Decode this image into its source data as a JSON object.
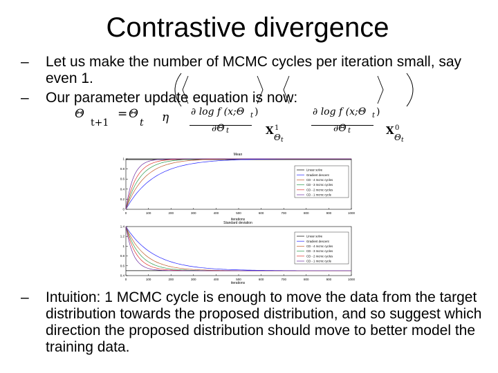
{
  "slide": {
    "title": "Contrastive divergence",
    "bullets": [
      {
        "dash": "–",
        "text": "Let us make the number of MCMC cycles per iteration small, say even 1."
      },
      {
        "dash": "–",
        "text": "Our parameter update equation is now:"
      },
      {
        "dash": "–",
        "text": "Intuition: 1 MCMC cycle is enough to move the data from the target distribution towards the proposed distribution, and so suggest which direction the proposed distribution should move to better model the training data."
      }
    ]
  },
  "equation": {
    "lhs": "Θ",
    "lhs_sub": "t+1",
    "eq": "=",
    "theta": "Θ",
    "theta_sub": "t",
    "eta": "η",
    "num1": "∂ log f (x;Θ",
    "num1_sub": "t",
    "num1_close": ")",
    "den1": "∂Θ",
    "den1_sub": "t",
    "x1": "X",
    "x1_sup": "1",
    "x1_sub": "Θ",
    "x1_subsub": "t",
    "num2": "∂ log f (x;Θ",
    "num2_sub": "t",
    "num2_close": ")",
    "den2": "∂Θ",
    "den2_sub": "t",
    "x0": "X",
    "x0_sup": "0",
    "x0_sub": "Θ",
    "x0_subsub": "t"
  },
  "figure": {
    "top_chart": {
      "title": "Mean",
      "xlabel": "iterations",
      "yticks": [
        "1",
        "0.8",
        "0.6",
        "0.4",
        "0.2",
        "0"
      ],
      "xticks": [
        "0",
        "100",
        "200",
        "300",
        "400",
        "500",
        "600",
        "700",
        "800",
        "900",
        "1000"
      ],
      "legend": [
        "Linear solve",
        "Gradient descent",
        "CD - 4 mcmc cycles",
        "CD - 3 mcmc cycles",
        "CD - 2 mcmc cycles",
        "CD - 1 mcmc cycle"
      ]
    },
    "bottom_chart": {
      "title": "Standard deviation",
      "xlabel": "iterations",
      "yticks": [
        "1.4",
        "1.2",
        "1",
        "0.8",
        "0.6",
        "0.4"
      ],
      "xticks": [
        "0",
        "100",
        "200",
        "300",
        "400",
        "500",
        "600",
        "700",
        "800",
        "900",
        "1000"
      ],
      "legend": [
        "Linear solve",
        "Gradient descent",
        "CD - 4 mcmc cycles",
        "CD - 3 mcmc cycles",
        "CD - 2 mcmc cycles",
        "CD - 1 mcmc cycle"
      ]
    },
    "colors": [
      "#000000",
      "#2020ff",
      "#c05a2a",
      "#2a9a4a",
      "#e0302a",
      "#6a2aa0"
    ]
  }
}
